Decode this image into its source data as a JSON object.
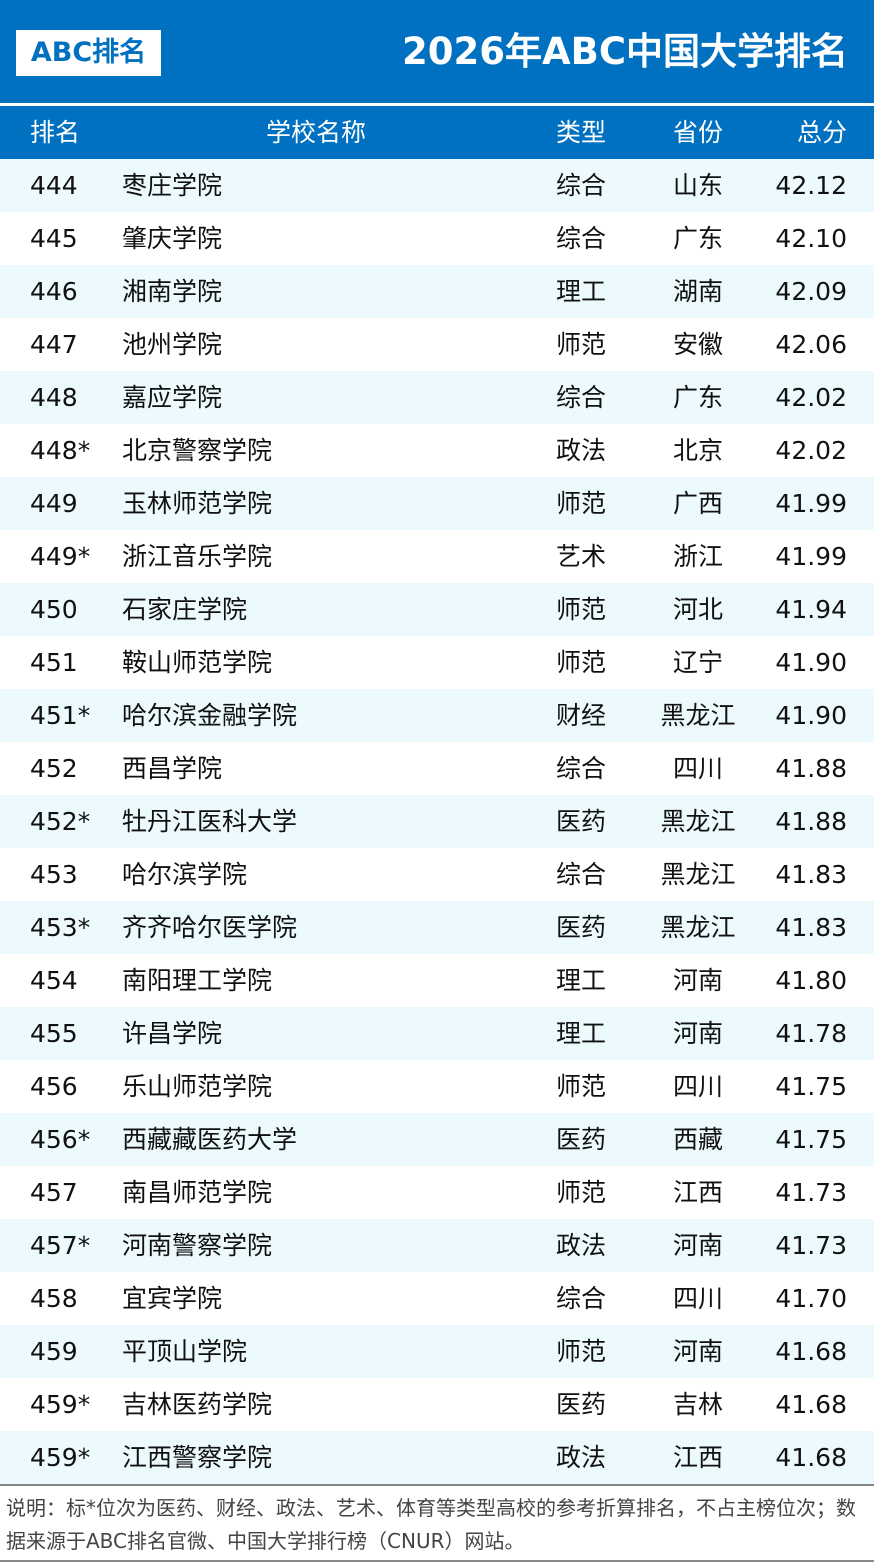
{
  "header": {
    "logo": "ABC排名",
    "title": "2026年ABC中国大学排名",
    "accent": "#0070c0",
    "row_alt": "#ecfafd"
  },
  "columns": {
    "rank": "排名",
    "name": "学校名称",
    "type": "类型",
    "province": "省份",
    "score": "总分"
  },
  "rows": [
    {
      "rank": "444",
      "name": "枣庄学院",
      "type": "综合",
      "province": "山东",
      "score": "42.12"
    },
    {
      "rank": "445",
      "name": "肇庆学院",
      "type": "综合",
      "province": "广东",
      "score": "42.10"
    },
    {
      "rank": "446",
      "name": "湘南学院",
      "type": "理工",
      "province": "湖南",
      "score": "42.09"
    },
    {
      "rank": "447",
      "name": "池州学院",
      "type": "师范",
      "province": "安徽",
      "score": "42.06"
    },
    {
      "rank": "448",
      "name": "嘉应学院",
      "type": "综合",
      "province": "广东",
      "score": "42.02"
    },
    {
      "rank": "448*",
      "name": "北京警察学院",
      "type": "政法",
      "province": "北京",
      "score": "42.02"
    },
    {
      "rank": "449",
      "name": "玉林师范学院",
      "type": "师范",
      "province": "广西",
      "score": "41.99"
    },
    {
      "rank": "449*",
      "name": "浙江音乐学院",
      "type": "艺术",
      "province": "浙江",
      "score": "41.99"
    },
    {
      "rank": "450",
      "name": "石家庄学院",
      "type": "师范",
      "province": "河北",
      "score": "41.94"
    },
    {
      "rank": "451",
      "name": "鞍山师范学院",
      "type": "师范",
      "province": "辽宁",
      "score": "41.90"
    },
    {
      "rank": "451*",
      "name": "哈尔滨金融学院",
      "type": "财经",
      "province": "黑龙江",
      "score": "41.90"
    },
    {
      "rank": "452",
      "name": "西昌学院",
      "type": "综合",
      "province": "四川",
      "score": "41.88"
    },
    {
      "rank": "452*",
      "name": "牡丹江医科大学",
      "type": "医药",
      "province": "黑龙江",
      "score": "41.88"
    },
    {
      "rank": "453",
      "name": "哈尔滨学院",
      "type": "综合",
      "province": "黑龙江",
      "score": "41.83"
    },
    {
      "rank": "453*",
      "name": "齐齐哈尔医学院",
      "type": "医药",
      "province": "黑龙江",
      "score": "41.83"
    },
    {
      "rank": "454",
      "name": "南阳理工学院",
      "type": "理工",
      "province": "河南",
      "score": "41.80"
    },
    {
      "rank": "455",
      "name": "许昌学院",
      "type": "理工",
      "province": "河南",
      "score": "41.78"
    },
    {
      "rank": "456",
      "name": "乐山师范学院",
      "type": "师范",
      "province": "四川",
      "score": "41.75"
    },
    {
      "rank": "456*",
      "name": "西藏藏医药大学",
      "type": "医药",
      "province": "西藏",
      "score": "41.75"
    },
    {
      "rank": "457",
      "name": "南昌师范学院",
      "type": "师范",
      "province": "江西",
      "score": "41.73"
    },
    {
      "rank": "457*",
      "name": "河南警察学院",
      "type": "政法",
      "province": "河南",
      "score": "41.73"
    },
    {
      "rank": "458",
      "name": "宜宾学院",
      "type": "综合",
      "province": "四川",
      "score": "41.70"
    },
    {
      "rank": "459",
      "name": "平顶山学院",
      "type": "师范",
      "province": "河南",
      "score": "41.68"
    },
    {
      "rank": "459*",
      "name": "吉林医药学院",
      "type": "医药",
      "province": "吉林",
      "score": "41.68"
    },
    {
      "rank": "459*",
      "name": "江西警察学院",
      "type": "政法",
      "province": "江西",
      "score": "41.68"
    }
  ],
  "footer": {
    "note": "说明：标*位次为医药、财经、政法、艺术、体育等类型高校的参考折算排名，不占主榜位次；数据来源于ABC排名官微、中国大学排行榜（CNUR）网站。"
  }
}
